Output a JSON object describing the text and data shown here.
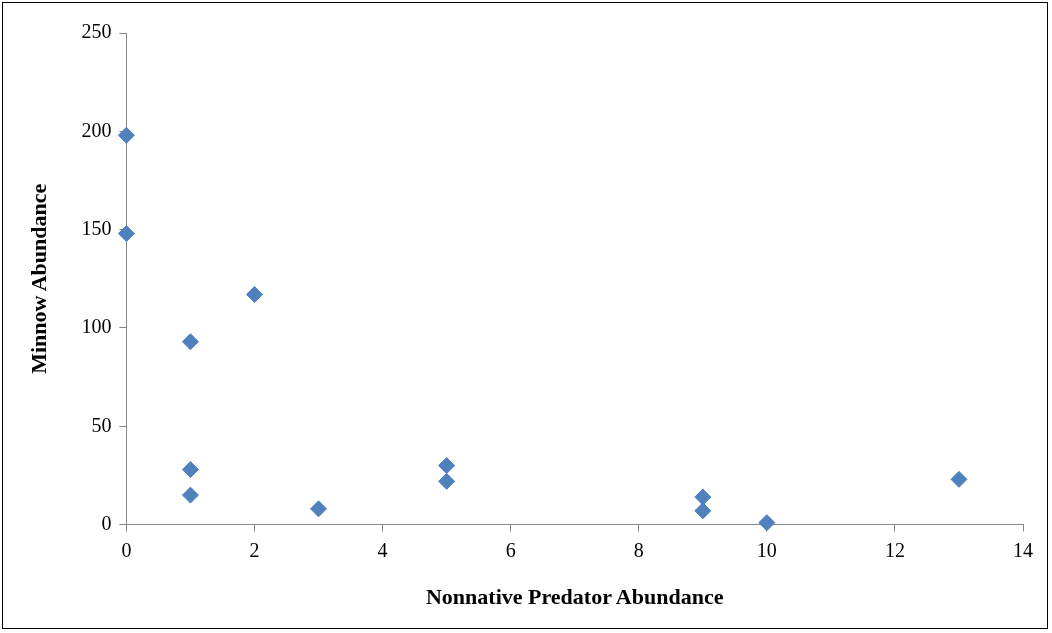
{
  "chart_data": {
    "type": "scatter",
    "xlabel": "Nonnative Predator Abundance",
    "ylabel": "Minnow Abundance",
    "x": [
      0,
      0,
      1,
      1,
      1,
      2,
      3,
      5,
      5,
      9,
      9,
      10,
      13
    ],
    "series": [
      {
        "color": "#4f81bd",
        "values": [
          198,
          148,
          93,
          28,
          15,
          117,
          8,
          30,
          22,
          14,
          7,
          1,
          23
        ]
      }
    ],
    "xlim": [
      0,
      14
    ],
    "xticks": [
      0,
      2,
      4,
      6,
      8,
      10,
      12,
      14
    ],
    "ylim": [
      0,
      250
    ],
    "yticks": [
      0,
      50,
      100,
      150,
      200,
      250
    ],
    "grid": false,
    "legend": false,
    "marker": "diamond"
  }
}
